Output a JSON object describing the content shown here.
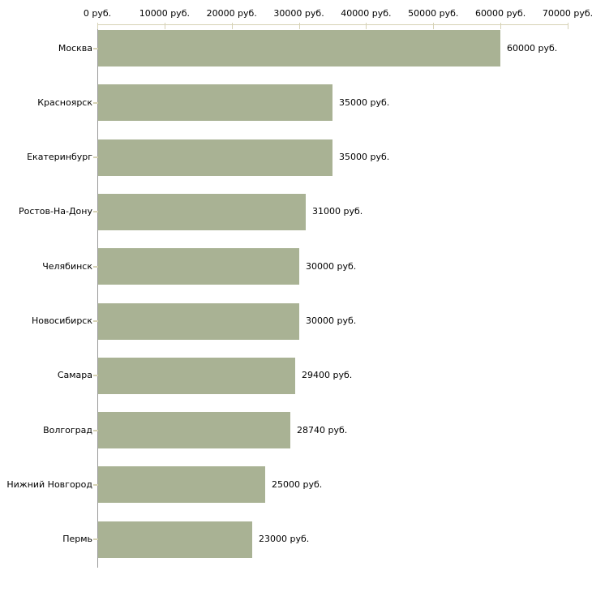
{
  "chart_data": {
    "type": "bar",
    "orientation": "horizontal",
    "title": "",
    "categories": [
      "Москва",
      "Красноярск",
      "Екатеринбург",
      "Ростов-На-Дону",
      "Челябинск",
      "Новосибирск",
      "Самара",
      "Волгоград",
      "Нижний Новгород",
      "Пермь"
    ],
    "values": [
      60000,
      35000,
      35000,
      31000,
      30000,
      30000,
      29400,
      28740,
      25000,
      23000
    ],
    "value_labels": [
      "60000 руб.",
      "35000 руб.",
      "35000 руб.",
      "31000 руб.",
      "30000 руб.",
      "30000 руб.",
      "29400 руб.",
      "28740 руб.",
      "25000 руб.",
      "23000 руб."
    ],
    "x_ticks": [
      0,
      10000,
      20000,
      30000,
      40000,
      50000,
      60000,
      70000
    ],
    "x_tick_labels": [
      "0 руб.",
      "10000 руб.",
      "20000 руб.",
      "30000 руб.",
      "40000 руб.",
      "50000 руб.",
      "60000 руб.",
      "70000 руб."
    ],
    "xlim": [
      0,
      70000
    ],
    "unit": "руб.",
    "grid": false,
    "legend": null,
    "xlabel": "",
    "ylabel": "",
    "colors": {
      "bar_fill": "#a9b294",
      "axis_and_ticks": "#d6d2b5",
      "y_axis_line": "#9a9a9a",
      "text": "#000000",
      "background": "#ffffff"
    }
  }
}
